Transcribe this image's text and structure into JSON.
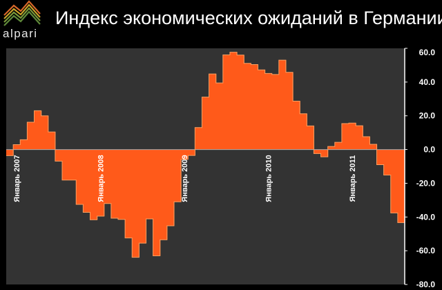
{
  "brand": {
    "name": "alpari",
    "logo": "alpari-mountain-logo"
  },
  "chart_data": {
    "type": "area",
    "title": "Индекс экономических ожиданий в Германии",
    "xlabel": "",
    "ylabel": "",
    "ylim": [
      -80,
      60
    ],
    "yticks": [
      -80,
      -60,
      -40,
      -20,
      0,
      20,
      40,
      60
    ],
    "ytick_labels": [
      "-80.0",
      "-60.0",
      "-40.0",
      "-20.0",
      "0.0",
      "20.0",
      "40.0",
      "60.0"
    ],
    "grid": false,
    "legend": "none",
    "fill_color": "#ff5a1a",
    "line_color": "#ffa060",
    "background": "#333333",
    "x_start": "2006-12",
    "x_tick_labels": [
      {
        "label": "Январь 2007",
        "index": 1
      },
      {
        "label": "Январь 2008",
        "index": 13
      },
      {
        "label": "Январь 2009",
        "index": 25
      },
      {
        "label": "Январь 2010",
        "index": 37
      },
      {
        "label": "Январь 2011",
        "index": 49
      }
    ],
    "values": [
      -3.6,
      2.9,
      5.8,
      16.2,
      23.0,
      20.0,
      10.4,
      -6.9,
      -18.1,
      -18.1,
      -32.5,
      -37.2,
      -41.6,
      -39.5,
      -32.0,
      -40.7,
      -41.4,
      -52.4,
      -63.9,
      -55.5,
      -41.1,
      -63.0,
      -53.5,
      -45.2,
      -31.0,
      -5.8,
      -3.5,
      13.0,
      31.1,
      44.8,
      39.5,
      56.1,
      57.7,
      56.0,
      51.1,
      50.4,
      47.2,
      45.1,
      44.5,
      53.0,
      45.8,
      28.7,
      21.2,
      14.0,
      -2.4,
      -4.3,
      1.8,
      4.3,
      15.4,
      15.7,
      14.1,
      7.6,
      3.1,
      -9.0,
      -15.1,
      -37.6,
      -43.3
    ]
  }
}
